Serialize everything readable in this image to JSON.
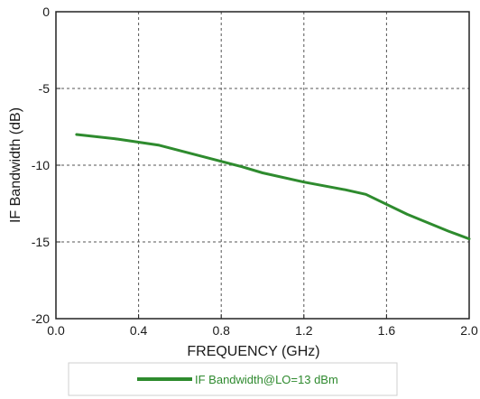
{
  "chart_data": {
    "type": "line",
    "xlabel": "FREQUENCY (GHz)",
    "ylabel": "IF Bandwidth (dB)",
    "xlim": [
      0.0,
      2.0
    ],
    "ylim": [
      -20,
      0
    ],
    "x_ticks": [
      "0.0",
      "0.4",
      "0.8",
      "1.2",
      "1.6",
      "2.0"
    ],
    "y_ticks": [
      "0",
      "-5",
      "-10",
      "-15",
      "-20"
    ],
    "grid": true,
    "grid_style": "dashed",
    "legend_position": "bottom",
    "series": [
      {
        "name": "IF Bandwidth@LO=13 dBm",
        "color": "#2e8b2e",
        "x": [
          0.1,
          0.3,
          0.5,
          0.7,
          0.9,
          1.0,
          1.2,
          1.4,
          1.5,
          1.7,
          1.9,
          2.0
        ],
        "y": [
          -8.0,
          -8.3,
          -8.7,
          -9.4,
          -10.1,
          -10.5,
          -11.1,
          -11.6,
          -11.9,
          -13.2,
          -14.3,
          -14.8
        ]
      }
    ]
  }
}
